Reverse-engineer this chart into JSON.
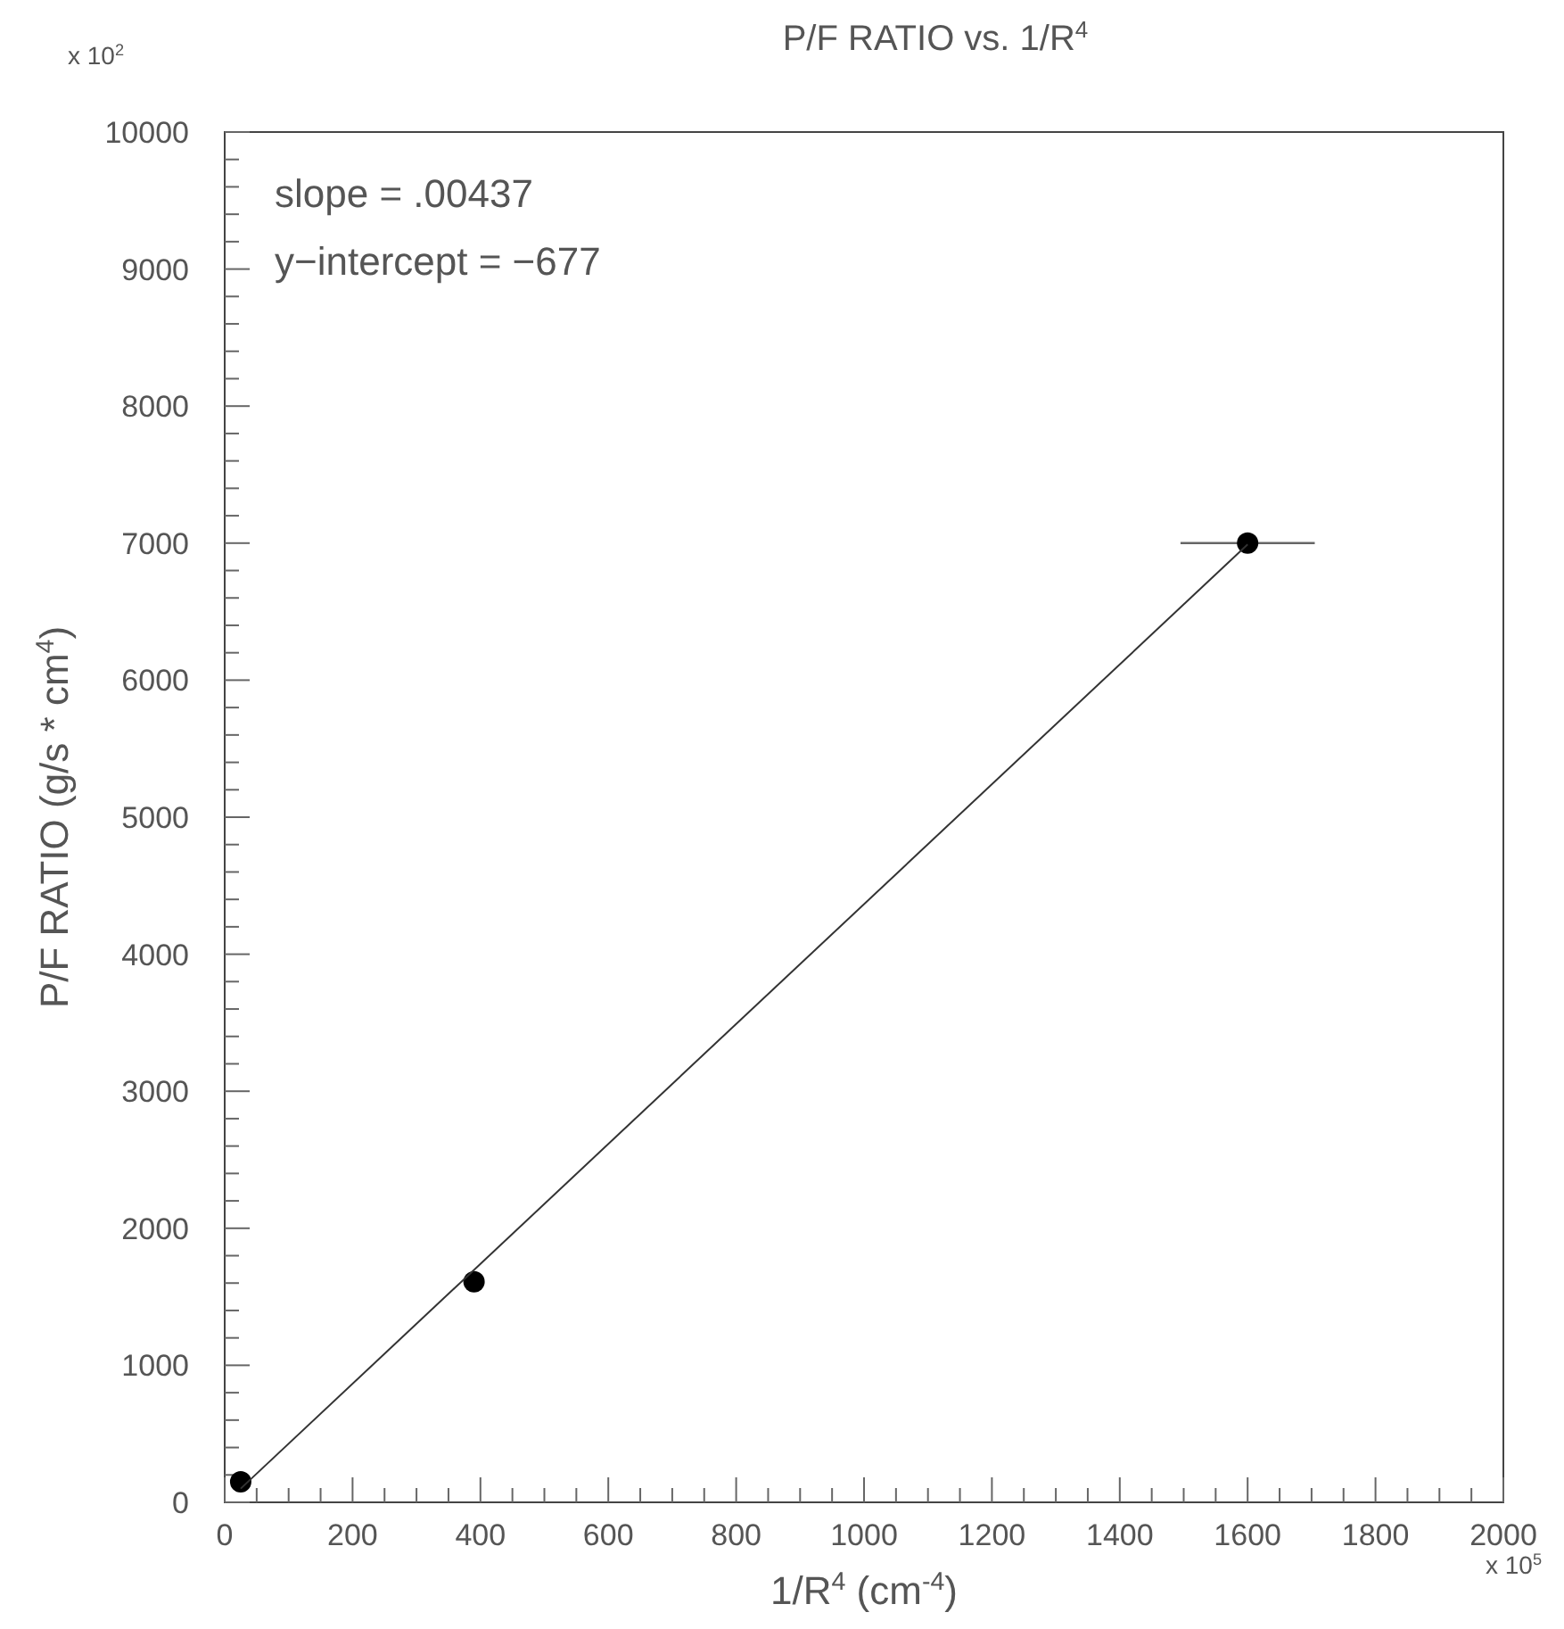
{
  "chart_data": {
    "type": "scatter",
    "title": "P/F RATIO vs. 1/R$^{4}$",
    "xlabel": "1/R$^{4}$  (cm$^{-4}$)",
    "ylabel": "P/F RATIO (g/s * cm$^{4}$)",
    "series": [
      {
        "x": [
          25,
          390,
          1600
        ],
        "values": [
          150,
          1610,
          7000
        ],
        "xerrors": [
          null,
          null,
          105
        ],
        "color": "#000000",
        "marker": "circle"
      },
      {
        "type": "line",
        "x": [
          25,
          1600
        ],
        "values": [
          100,
          6990
        ],
        "color": "#333333",
        "marker": "none"
      }
    ],
    "annotations": [
      "slope = .00437",
      "y−intercept = −677",
      "x 10$^{2}$",
      "x 10$^{5}$"
    ],
    "xlim": [
      0,
      2000
    ],
    "ylim": [
      0,
      10000
    ],
    "xticks": [
      0,
      {
        "value": 50,
        "label": null
      },
      {
        "value": 100,
        "label": null
      },
      {
        "value": 150,
        "label": null
      },
      200,
      {
        "value": 250,
        "label": null
      },
      {
        "value": 300,
        "label": null
      },
      {
        "value": 350,
        "label": null
      },
      400,
      {
        "value": 450,
        "label": null
      },
      {
        "value": 500,
        "label": null
      },
      {
        "value": 550,
        "label": null
      },
      600,
      {
        "value": 650,
        "label": null
      },
      {
        "value": 700,
        "label": null
      },
      {
        "value": 750,
        "label": null
      },
      800,
      {
        "value": 850,
        "label": null
      },
      {
        "value": 900,
        "label": null
      },
      {
        "value": 950,
        "label": null
      },
      1000,
      {
        "value": 1050,
        "label": null
      },
      {
        "value": 1100,
        "label": null
      },
      {
        "value": 1150,
        "label": null
      },
      1200,
      {
        "value": 1250,
        "label": null
      },
      {
        "value": 1300,
        "label": null
      },
      {
        "value": 1350,
        "label": null
      },
      1400,
      {
        "value": 1450,
        "label": null
      },
      {
        "value": 1500,
        "label": null
      },
      {
        "value": 1550,
        "label": null
      },
      1600,
      {
        "value": 1650,
        "label": null
      },
      {
        "value": 1700,
        "label": null
      },
      {
        "value": 1750,
        "label": null
      },
      1800,
      {
        "value": 1850,
        "label": null
      },
      {
        "value": 1900,
        "label": null
      },
      {
        "value": 1950,
        "label": null
      },
      2000
    ],
    "yticks": [
      0,
      {
        "value": 200,
        "label": null
      },
      {
        "value": 400,
        "label": null
      },
      {
        "value": 600,
        "label": null
      },
      {
        "value": 800,
        "label": null
      },
      1000,
      {
        "value": 1200,
        "label": null
      },
      {
        "value": 1400,
        "label": null
      },
      {
        "value": 1600,
        "label": null
      },
      {
        "value": 1800,
        "label": null
      },
      2000,
      {
        "value": 2200,
        "label": null
      },
      {
        "value": 2400,
        "label": null
      },
      {
        "value": 2600,
        "label": null
      },
      {
        "value": 2800,
        "label": null
      },
      3000,
      {
        "value": 3200,
        "label": null
      },
      {
        "value": 3400,
        "label": null
      },
      {
        "value": 3600,
        "label": null
      },
      {
        "value": 3800,
        "label": null
      },
      4000,
      {
        "value": 4200,
        "label": null
      },
      {
        "value": 4400,
        "label": null
      },
      {
        "value": 4600,
        "label": null
      },
      {
        "value": 4800,
        "label": null
      },
      5000,
      {
        "value": 5200,
        "label": null
      },
      {
        "value": 5400,
        "label": null
      },
      {
        "value": 5600,
        "label": null
      },
      {
        "value": 5800,
        "label": null
      },
      6000,
      {
        "value": 6200,
        "label": null
      },
      {
        "value": 6400,
        "label": null
      },
      {
        "value": 6600,
        "label": null
      },
      {
        "value": 6800,
        "label": null
      },
      7000,
      {
        "value": 7200,
        "label": null
      },
      {
        "value": 7400,
        "label": null
      },
      {
        "value": 7600,
        "label": null
      },
      {
        "value": 7800,
        "label": null
      },
      8000,
      {
        "value": 8200,
        "label": null
      },
      {
        "value": 8400,
        "label": null
      },
      {
        "value": 8600,
        "label": null
      },
      {
        "value": 8800,
        "label": null
      },
      9000,
      {
        "value": 9200,
        "label": null
      },
      {
        "value": 9400,
        "label": null
      },
      {
        "value": 9600,
        "label": null
      },
      {
        "value": 9800,
        "label": null
      },
      10000
    ],
    "grid": false
  }
}
